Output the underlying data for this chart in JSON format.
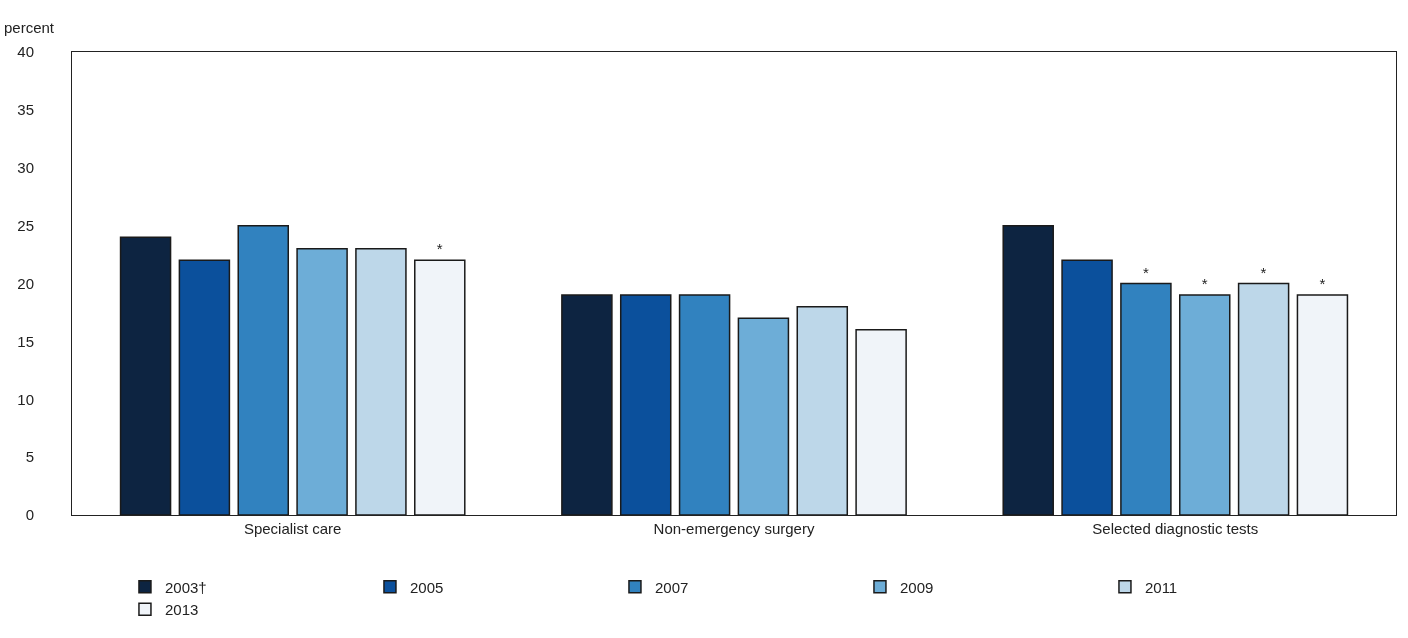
{
  "chart_data": {
    "type": "bar",
    "ylabel": "percent",
    "categories": [
      "Specialist care",
      "Non-emergency surgery",
      "Selected diagnostic tests"
    ],
    "series": [
      {
        "name": "2003†",
        "color": "#0d2441",
        "values": [
          24,
          19,
          25
        ]
      },
      {
        "name": "2005",
        "color": "#0b509c",
        "values": [
          22,
          19,
          22
        ]
      },
      {
        "name": "2007",
        "color": "#3182bf",
        "values": [
          25,
          19,
          20
        ],
        "value_labels": [
          null,
          null,
          "*"
        ]
      },
      {
        "name": "2009",
        "color": "#6dadd7",
        "values": [
          23,
          17,
          19
        ],
        "value_labels": [
          null,
          null,
          "*"
        ]
      },
      {
        "name": "2011",
        "color": "#bdd7e9",
        "values": [
          23,
          18,
          20
        ],
        "value_labels": [
          null,
          null,
          "*"
        ]
      },
      {
        "name": "2013",
        "color": "#f0f4f9",
        "values": [
          22,
          16,
          19
        ],
        "value_labels": [
          "*",
          null,
          "*"
        ]
      }
    ],
    "ylim": [
      0,
      40
    ],
    "yticks": [
      0,
      5,
      10,
      15,
      20,
      25,
      30,
      35,
      40
    ],
    "grid": false,
    "legend": "bottom"
  }
}
